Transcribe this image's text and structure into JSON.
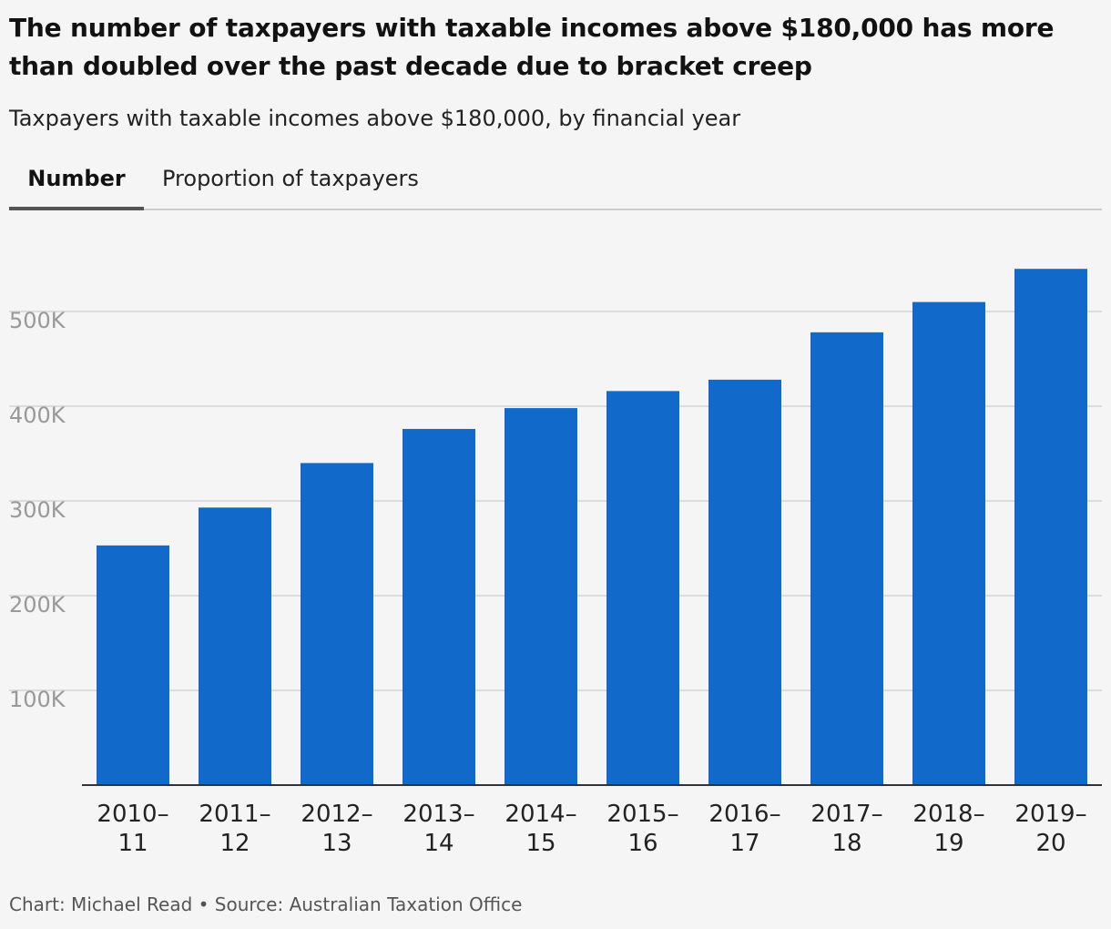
{
  "title": "The number of taxpayers with taxable incomes above $180,000 has more than doubled over the past decade due to bracket creep",
  "subtitle": "Taxpayers with taxable incomes above $180,000, by financial year",
  "tabs": [
    {
      "label": "Number",
      "active": true
    },
    {
      "label": "Proportion of taxpayers",
      "active": false
    }
  ],
  "footer": "Chart: Michael Read • Source: Australian Taxation Office",
  "colors": {
    "bar": "#1169c9",
    "gridline": "#dcdcdc",
    "axis": "#333333",
    "tick_label": "#999999",
    "category_label": "#222222"
  },
  "chart_data": {
    "type": "bar",
    "categories": [
      [
        "2010–",
        "11"
      ],
      [
        "2011–",
        "12"
      ],
      [
        "2012–",
        "13"
      ],
      [
        "2013–",
        "14"
      ],
      [
        "2014–",
        "15"
      ],
      [
        "2015–",
        "16"
      ],
      [
        "2016–",
        "17"
      ],
      [
        "2017–",
        "18"
      ],
      [
        "2018–",
        "19"
      ],
      [
        "2019–",
        "20"
      ]
    ],
    "values": [
      253000,
      293000,
      340000,
      376000,
      398000,
      416000,
      428000,
      478000,
      510000,
      545000
    ],
    "yticks": [
      100000,
      200000,
      300000,
      400000,
      500000
    ],
    "ytick_labels": [
      "100K",
      "200K",
      "300K",
      "400K",
      "500K"
    ],
    "ylim": [
      0,
      575000
    ],
    "grid": true,
    "legend": "none"
  }
}
